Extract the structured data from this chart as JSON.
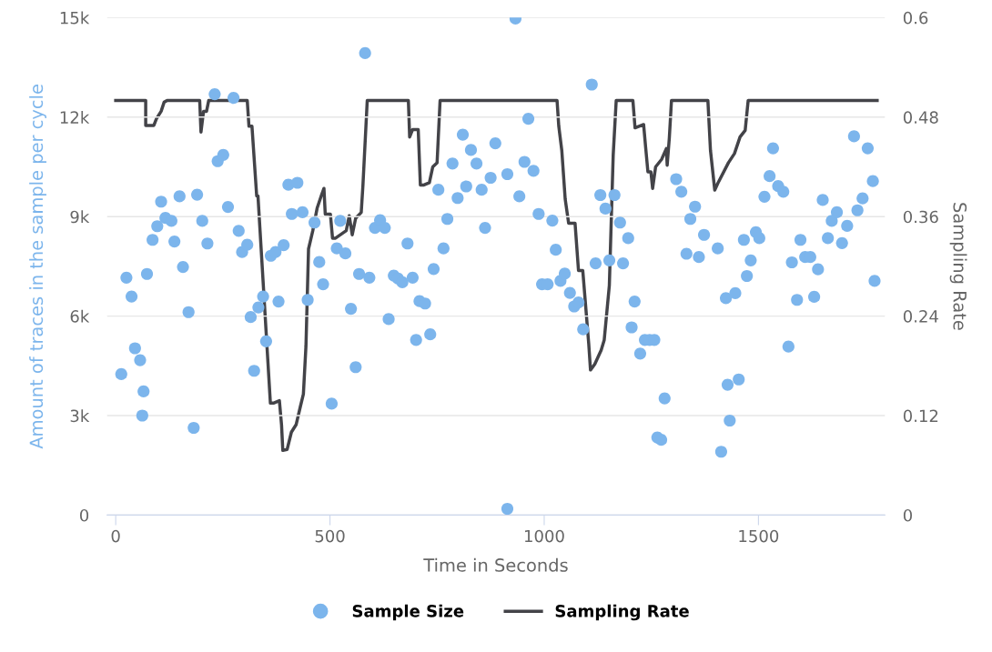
{
  "chart_data": {
    "type": "scatter",
    "xlabel": "Time in Seconds",
    "ylabel": "Amount of traces in the sample per cycle",
    "y2label": "Sampling Rate",
    "xlim": [
      -20,
      1795
    ],
    "xticks": [
      0,
      500,
      1000,
      1500
    ],
    "ylim": [
      0,
      15000
    ],
    "yticks": [
      {
        "value": 0,
        "label": "0"
      },
      {
        "value": 3000,
        "label": "3k"
      },
      {
        "value": 6000,
        "label": "6k"
      },
      {
        "value": 9000,
        "label": "9k"
      },
      {
        "value": 12000,
        "label": "12k"
      },
      {
        "value": 15000,
        "label": "15k"
      }
    ],
    "y2lim": [
      0,
      0.6
    ],
    "y2ticks": [
      0,
      0.12,
      0.24,
      0.36,
      0.48,
      0.6
    ],
    "grid": "y",
    "legend": "bottom",
    "series": [
      {
        "name": "Sample Size",
        "color": "#7cb5ec",
        "marker": "circle",
        "x": [
          13,
          25,
          37,
          45,
          57,
          65,
          62,
          73,
          86,
          97,
          106,
          116,
          130,
          137,
          149,
          157,
          170,
          182,
          190,
          202,
          214,
          231,
          238,
          251,
          262,
          275,
          287,
          295,
          307,
          315,
          323,
          333,
          344,
          351,
          362,
          373,
          380,
          392,
          403,
          424,
          411,
          436,
          448,
          464,
          475,
          484,
          504,
          524,
          536,
          516,
          549,
          560,
          568,
          582,
          592,
          605,
          617,
          628,
          637,
          649,
          659,
          669,
          681,
          693,
          701,
          709,
          722,
          734,
          742,
          753,
          765,
          774,
          786,
          798,
          810,
          818,
          829,
          842,
          854,
          862,
          875,
          886,
          914,
          914,
          933,
          942,
          954,
          963,
          975,
          987,
          995,
          1008,
          1019,
          1027,
          1038,
          1048,
          1060,
          1070,
          1080,
          1091,
          1111,
          1120,
          1131,
          1143,
          1152,
          1164,
          1177,
          1184,
          1196,
          1211,
          1204,
          1224,
          1235,
          1246,
          1257,
          1281,
          1264,
          1273,
          1308,
          1320,
          1352,
          1341,
          1373,
          1332,
          1361,
          1405,
          1413,
          1433,
          1428,
          1454,
          1424,
          1446,
          1466,
          1473,
          1482,
          1494,
          1502,
          1514,
          1526,
          1534,
          1546,
          1558,
          1570,
          1578,
          1590,
          1598,
          1609,
          1621,
          1630,
          1639,
          1650,
          1662,
          1671,
          1683,
          1695,
          1707,
          1723,
          1731,
          1743,
          1755,
          1767,
          1771
        ],
        "values": [
          4250,
          7160,
          6590,
          5030,
          4670,
          3730,
          3000,
          7270,
          8300,
          8710,
          9450,
          8960,
          8870,
          8250,
          9610,
          7480,
          6120,
          2630,
          9660,
          8870,
          8190,
          12690,
          10670,
          10860,
          9290,
          12580,
          8570,
          7930,
          8150,
          5970,
          4350,
          6260,
          6590,
          5240,
          7820,
          7930,
          6440,
          8140,
          9960,
          10020,
          9080,
          9130,
          6490,
          8820,
          7630,
          6960,
          3360,
          8870,
          7890,
          8040,
          6220,
          4460,
          7270,
          13930,
          7160,
          8660,
          8890,
          8660,
          5910,
          7220,
          7130,
          7020,
          8190,
          7160,
          5280,
          6450,
          6380,
          5450,
          7420,
          9810,
          8040,
          8930,
          10600,
          9560,
          11470,
          9910,
          11010,
          10600,
          9810,
          8660,
          10170,
          11210,
          190,
          10280,
          14970,
          9610,
          10650,
          11950,
          10380,
          9080,
          6960,
          6960,
          8880,
          8000,
          7060,
          7280,
          6700,
          6290,
          6410,
          5600,
          12980,
          7590,
          9650,
          9240,
          7680,
          9650,
          8820,
          7590,
          8350,
          6440,
          5660,
          4870,
          5280,
          5280,
          5280,
          3520,
          2340,
          2270,
          10130,
          9750,
          9300,
          8930,
          8450,
          7880,
          7780,
          8040,
          1910,
          2850,
          3930,
          4090,
          6540,
          6690,
          8300,
          7210,
          7680,
          8530,
          8350,
          9600,
          10220,
          11060,
          9920,
          9750,
          5080,
          7620,
          6490,
          8300,
          7780,
          7780,
          6580,
          7410,
          9500,
          8350,
          8870,
          9130,
          8200,
          8720,
          11420,
          9190,
          9550,
          11060,
          10070,
          7060
        ]
      },
      {
        "name": "Sampling Rate",
        "type": "line",
        "axis": "y2",
        "color": "#434348",
        "marker": "none",
        "line_style": "solid",
        "x": [
          0,
          70,
          70,
          89,
          95,
          106,
          113,
          120,
          196,
          199,
          205,
          212,
          217,
          307,
          311,
          318,
          329,
          332,
          361,
          368,
          382,
          387,
          390,
          400,
          410,
          421,
          431,
          438,
          444,
          450,
          460,
          470,
          481,
          486,
          489,
          501,
          506,
          513,
          538,
          545,
          552,
          560,
          573,
          577,
          587,
          683,
          686,
          693,
          706,
          711,
          718,
          732,
          740,
          750,
          757,
          1030,
          1034,
          1041,
          1049,
          1057,
          1072,
          1080,
          1090,
          1104,
          1108,
          1118,
          1133,
          1140,
          1152,
          1161,
          1168,
          1207,
          1212,
          1232,
          1237,
          1242,
          1249,
          1253,
          1260,
          1274,
          1285,
          1287,
          1292,
          1297,
          1382,
          1388,
          1398,
          1405,
          1430,
          1444,
          1457,
          1469,
          1476,
          1777
        ],
        "values": [
          0.5,
          0.5,
          0.47,
          0.47,
          0.478,
          0.487,
          0.498,
          0.5,
          0.5,
          0.462,
          0.487,
          0.487,
          0.5,
          0.5,
          0.469,
          0.469,
          0.385,
          0.385,
          0.135,
          0.135,
          0.138,
          0.109,
          0.078,
          0.079,
          0.1,
          0.109,
          0.131,
          0.146,
          0.204,
          0.321,
          0.343,
          0.37,
          0.387,
          0.394,
          0.363,
          0.363,
          0.334,
          0.334,
          0.343,
          0.361,
          0.338,
          0.358,
          0.365,
          0.398,
          0.5,
          0.5,
          0.456,
          0.465,
          0.465,
          0.398,
          0.398,
          0.401,
          0.42,
          0.425,
          0.5,
          0.5,
          0.469,
          0.44,
          0.381,
          0.352,
          0.352,
          0.295,
          0.295,
          0.206,
          0.175,
          0.182,
          0.199,
          0.211,
          0.277,
          0.434,
          0.5,
          0.5,
          0.467,
          0.471,
          0.442,
          0.414,
          0.414,
          0.394,
          0.42,
          0.429,
          0.442,
          0.422,
          0.455,
          0.5,
          0.5,
          0.44,
          0.392,
          0.4,
          0.425,
          0.436,
          0.456,
          0.464,
          0.5,
          0.5
        ]
      }
    ]
  }
}
